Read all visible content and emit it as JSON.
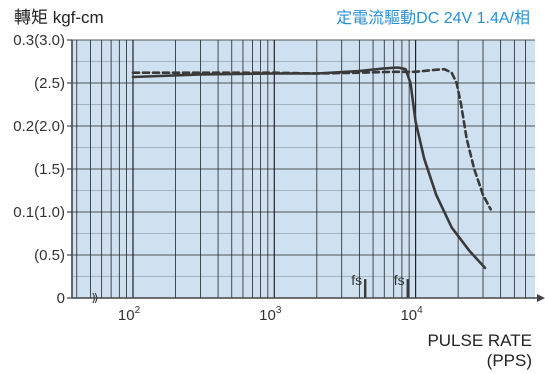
{
  "colors": {
    "plot_bg": "#cfe1f1",
    "grid": "#222222",
    "curve": "#3a3a3a",
    "title_accent": "#2a8fd4"
  },
  "chart_data": {
    "type": "line",
    "title_left": "轉矩 kgf-cm",
    "title_right": "定電流驅動DC 24V 1.4A/相",
    "xlabel_line1": "PULSE RATE",
    "xlabel_line2": "(PPS)",
    "x_scale": "log",
    "xlim": [
      37,
      70000
    ],
    "ylim": [
      0,
      3.0
    ],
    "grid": true,
    "x_ticks": [
      {
        "value": 100,
        "base": "10",
        "exp": "2"
      },
      {
        "value": 1000,
        "base": "10",
        "exp": "3"
      },
      {
        "value": 10000,
        "base": "10",
        "exp": "4"
      }
    ],
    "y_ticks": [
      {
        "value": 3.0,
        "label": "0.3(3.0)"
      },
      {
        "value": 2.5,
        "label": "(2.5)"
      },
      {
        "value": 2.0,
        "label": "0.2(2.0)"
      },
      {
        "value": 1.5,
        "label": "(1.5)"
      },
      {
        "value": 1.0,
        "label": "0.1(1.0)"
      },
      {
        "value": 0.5,
        "label": "(0.5)"
      },
      {
        "value": 0,
        "label": "0"
      }
    ],
    "series": [
      {
        "style": "solid",
        "x": [
          100,
          300,
          1000,
          2000,
          4000,
          6000,
          7500,
          8500,
          9200,
          10000,
          11500,
          14000,
          18000,
          24000,
          31000
        ],
        "y": [
          2.57,
          2.6,
          2.61,
          2.61,
          2.64,
          2.67,
          2.68,
          2.66,
          2.5,
          2.05,
          1.62,
          1.2,
          0.82,
          0.55,
          0.35
        ]
      },
      {
        "style": "dashed",
        "x": [
          100,
          300,
          1000,
          2000,
          4000,
          7000,
          10000,
          13000,
          16000,
          18000,
          19500,
          21000,
          23000,
          26000,
          30000,
          34000
        ],
        "y": [
          2.62,
          2.62,
          2.62,
          2.61,
          2.62,
          2.63,
          2.63,
          2.65,
          2.66,
          2.62,
          2.5,
          2.25,
          1.85,
          1.5,
          1.2,
          1.03
        ]
      }
    ],
    "annotations": [
      {
        "text": "fs",
        "x": 4400,
        "y_from": 0.22,
        "y_to": 0
      },
      {
        "text": "fs",
        "x": 8800,
        "y_from": 0.22,
        "y_to": 0
      }
    ]
  }
}
